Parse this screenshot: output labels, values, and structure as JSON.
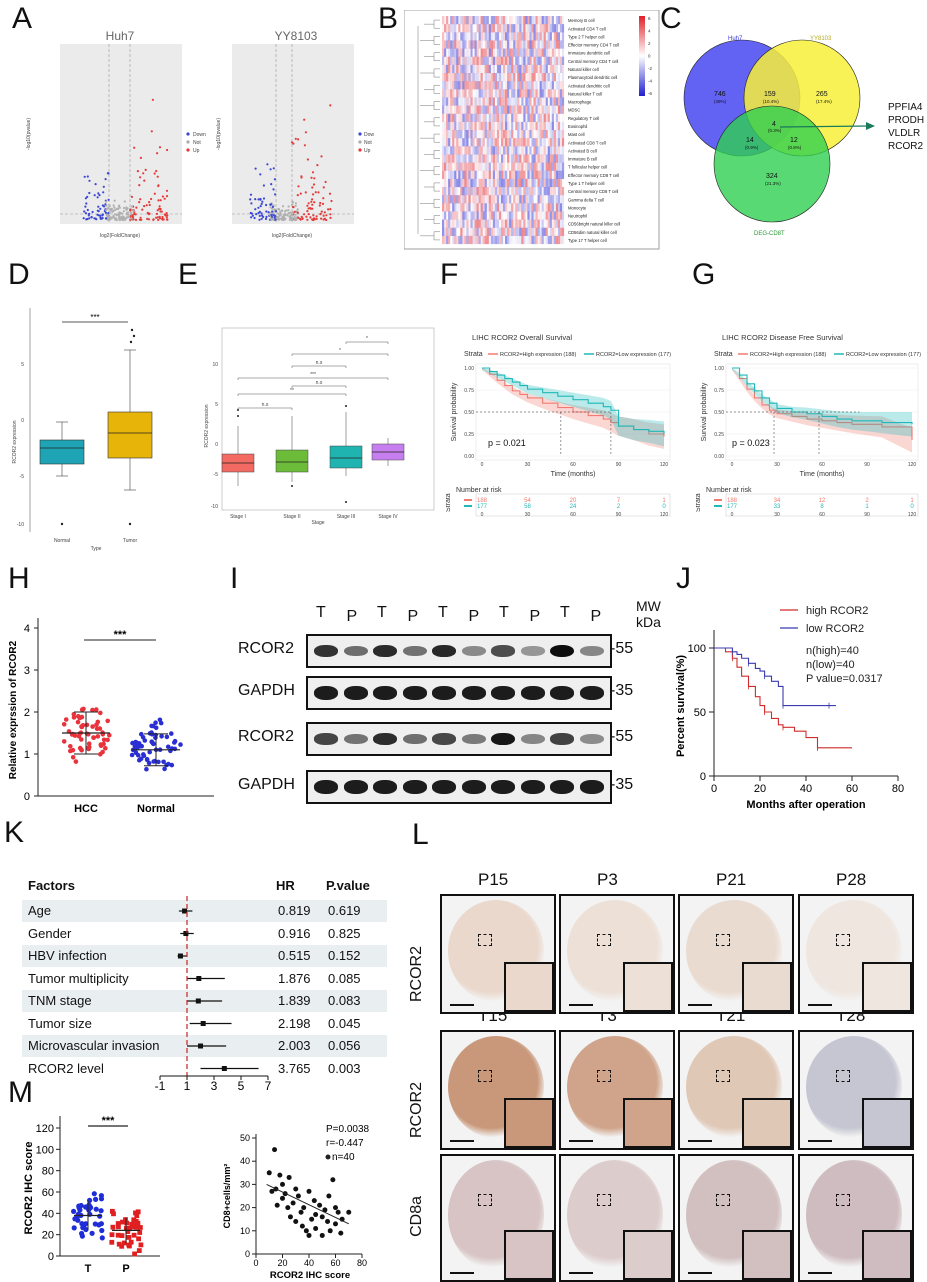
{
  "panels": {
    "A": "A",
    "B": "B",
    "C": "C",
    "D": "D",
    "E": "E",
    "F": "F",
    "G": "G",
    "H": "H",
    "I": "I",
    "J": "J",
    "K": "K",
    "L": "L",
    "M": "M"
  },
  "panelA": {
    "left_title": "Huh7",
    "right_title": "YY8103",
    "xlabel": "log2(FoldChange)",
    "ylabel": "-log10(pvalue)",
    "legend": [
      "Down",
      "Not",
      "Up"
    ]
  },
  "panelB": {
    "cells": [
      "Memory B cell",
      "Activated CD4 T cell",
      "Type 2 T helper cell",
      "Effector memory CD4 T cell",
      "Immature dendritic cell",
      "Central memory CD4 T cell",
      "Natural killer cell",
      "Plasmacytoid dendritic cell",
      "Activated dendritic cell",
      "Natural killer T cell",
      "Macrophage",
      "MDSC",
      "Regulatory T cell",
      "Eosinophil",
      "Mast cell",
      "Activated CD8 T cell",
      "Activated B cell",
      "Immature B cell",
      "T follicular helper cell",
      "Effector memory CD8 T cell",
      "Type 1 T helper cell",
      "Central memory CD8 T cell",
      "Gamma delta T cell",
      "Monocyte",
      "Neutrophil",
      "CD56bright natural killer cell",
      "CD56dim natural killer cell",
      "Type 17 T helper cell"
    ],
    "scale": [
      "6",
      "4",
      "2",
      "0",
      "-2",
      "-4",
      "-6"
    ]
  },
  "panelC": {
    "set1": "Huh7",
    "set2": "YY8103",
    "set3": "DEG-CD8T",
    "regions": [
      {
        "n": "746",
        "p": "(49%)"
      },
      {
        "n": "159",
        "p": "(10.4%)"
      },
      {
        "n": "265",
        "p": "(17.4%)"
      },
      {
        "n": "4",
        "p": "(0.3%)"
      },
      {
        "n": "14",
        "p": "(0.9%)"
      },
      {
        "n": "12",
        "p": "(0.8%)"
      },
      {
        "n": "324",
        "p": "(21.3%)"
      }
    ],
    "genes": [
      "PPFIA4",
      "PRODH",
      "VLDLR",
      "RCOR2"
    ]
  },
  "panelD": {
    "ylabel": "RCOR2 expression",
    "xlabel": "Type",
    "categories": [
      "Normal",
      "Tumor"
    ],
    "sig": "***",
    "yticks": [
      "5",
      "0",
      "-5",
      "-10"
    ]
  },
  "panelE": {
    "ylabel": "RCOR2 expression",
    "xlabel": "Stage",
    "categories": [
      "Stage I",
      "Stage II",
      "Stage III",
      "Stage IV"
    ],
    "sig": [
      "*",
      "*",
      "n.s",
      "***",
      "n.s",
      "**"
    ],
    "yticks": [
      "10",
      "5",
      "0",
      "-5",
      "-10"
    ]
  },
  "panelF": {
    "title": "LIHC RCOR2 Overall Survival",
    "strata_label": "Strata",
    "legend_high": "RCOR2=High expression (188)",
    "legend_low": "RCOR2=Low expression (177)",
    "ylabel": "Survival probability",
    "xlabel": "Time (months)",
    "pvalue": "p = 0.021",
    "risk_title": "Number at risk",
    "risk_high": [
      "188",
      "54",
      "20",
      "7",
      "1"
    ],
    "risk_low": [
      "177",
      "58",
      "24",
      "2",
      "0"
    ],
    "xticks": [
      "0",
      "30",
      "60",
      "90",
      "120"
    ],
    "yticks": [
      "1.00",
      "0.75",
      "0.50",
      "0.25",
      "0.00"
    ]
  },
  "panelG": {
    "title": "LIHC RCOR2 Disease Free Survival",
    "strata_label": "Strata",
    "legend_high": "RCOR2=High expression (188)",
    "legend_low": "RCOR2=Low expression (177)",
    "ylabel": "Survival probability",
    "xlabel": "Time (months)",
    "pvalue": "p = 0.023",
    "risk_title": "Number at risk",
    "risk_high": [
      "188",
      "34",
      "12",
      "2",
      "1"
    ],
    "risk_low": [
      "177",
      "33",
      "8",
      "1",
      "0"
    ],
    "xticks": [
      "0",
      "30",
      "60",
      "90",
      "120"
    ],
    "yticks": [
      "1.00",
      "0.75",
      "0.50",
      "0.25",
      "0.00"
    ]
  },
  "panelH": {
    "ylabel": "Relative exprssion of RCOR2",
    "categories": [
      "HCC",
      "Normal"
    ],
    "sig": "***",
    "yticks": [
      "0",
      "1",
      "2",
      "3",
      "4"
    ],
    "colors": {
      "HCC": "#e8323c",
      "Normal": "#2a2fd4"
    }
  },
  "panelI": {
    "lanes": [
      "T",
      "P",
      "T",
      "P",
      "T",
      "P",
      "T",
      "P",
      "T",
      "P"
    ],
    "mw_label": "MW",
    "kda_label": "kDa",
    "rows": [
      {
        "label": "RCOR2",
        "mw": "55"
      },
      {
        "label": "GAPDH",
        "mw": "35"
      },
      {
        "label": "RCOR2",
        "mw": "55"
      },
      {
        "label": "GAPDH",
        "mw": "35"
      }
    ]
  },
  "panelJ": {
    "legend_high": "high RCOR2",
    "legend_low": "low RCOR2",
    "n_high": "n(high)=40",
    "n_low": "n(low)=40",
    "pvalue": "P value=0.0317",
    "ylabel": "Percent survival(%)",
    "xlabel": "Months after operation",
    "xticks": [
      "0",
      "20",
      "40",
      "60",
      "80"
    ],
    "yticks": [
      "0",
      "50",
      "100"
    ],
    "colors": {
      "high": "#d22b2b",
      "low": "#3b3bb0"
    }
  },
  "panelK": {
    "headers": {
      "factor": "Factors",
      "hr": "HR",
      "p": "P.value"
    },
    "rows": [
      {
        "factor": "Age",
        "hr": "0.819",
        "p": "0.619"
      },
      {
        "factor": "Gender",
        "hr": "0.916",
        "p": "0.825"
      },
      {
        "factor": "HBV infection",
        "hr": "0.515",
        "p": "0.152"
      },
      {
        "factor": "Tumor multiplicity",
        "hr": "1.876",
        "p": "0.085"
      },
      {
        "factor": "TNM stage",
        "hr": "1.839",
        "p": "0.083"
      },
      {
        "factor": "Tumor size",
        "hr": "2.198",
        "p": "0.045"
      },
      {
        "factor": "Microvascular invasion",
        "hr": "2.003",
        "p": "0.056"
      },
      {
        "factor": "RCOR2 level",
        "hr": "3.765",
        "p": "0.003"
      }
    ],
    "xticks": [
      "-1",
      "1",
      "3",
      "5",
      "7"
    ]
  },
  "panelL": {
    "top_labels": [
      "P15",
      "P3",
      "P21",
      "P28"
    ],
    "mid_labels": [
      "T15",
      "T3",
      "T21",
      "T28"
    ],
    "row_labels": [
      "RCOR2",
      "RCOR2",
      "CD8a"
    ]
  },
  "panelM": {
    "left_ylabel": "RCOR2 IHC score",
    "left_categories": [
      "T",
      "P"
    ],
    "left_sig": "***",
    "left_yticks": [
      "0",
      "20",
      "40",
      "60",
      "80",
      "100",
      "120"
    ],
    "right_ylabel": "CD8+cells/mm²",
    "right_xlabel": "RCOR2 IHC score",
    "right_stats": [
      "P=0.0038",
      "r=-0.447",
      "n=40"
    ],
    "right_xticks": [
      "0",
      "20",
      "40",
      "60",
      "80"
    ],
    "right_yticks": [
      "0",
      "10",
      "20",
      "30",
      "40",
      "50"
    ]
  },
  "chart_data": [
    {
      "type": "line",
      "title": "LIHC RCOR2 Overall Survival",
      "xlabel": "Time (months)",
      "ylabel": "Survival probability",
      "xlim": [
        0,
        120
      ],
      "ylim": [
        0,
        1
      ],
      "series": [
        {
          "name": "RCOR2=High expression (188)",
          "x": [
            0,
            5,
            10,
            15,
            20,
            25,
            30,
            40,
            50,
            60,
            70,
            80,
            85,
            90,
            100,
            110,
            120
          ],
          "y": [
            1.0,
            0.93,
            0.86,
            0.8,
            0.74,
            0.7,
            0.66,
            0.6,
            0.55,
            0.5,
            0.46,
            0.42,
            0.38,
            0.34,
            0.3,
            0.25,
            0.22
          ]
        },
        {
          "name": "RCOR2=Low expression (177)",
          "x": [
            0,
            5,
            10,
            15,
            20,
            25,
            30,
            40,
            50,
            60,
            70,
            80,
            85,
            90,
            100,
            110,
            120
          ],
          "y": [
            1.0,
            0.96,
            0.92,
            0.88,
            0.84,
            0.8,
            0.76,
            0.72,
            0.68,
            0.64,
            0.6,
            0.56,
            0.52,
            0.34,
            0.3,
            0.28,
            0.25
          ]
        }
      ]
    },
    {
      "type": "line",
      "title": "LIHC RCOR2 Disease Free Survival",
      "xlabel": "Time (months)",
      "ylabel": "Survival probability",
      "xlim": [
        0,
        120
      ],
      "ylim": [
        0,
        1
      ],
      "series": [
        {
          "name": "RCOR2=High expression (188)",
          "x": [
            0,
            5,
            10,
            15,
            20,
            25,
            30,
            40,
            50,
            60,
            70,
            80,
            100,
            120
          ],
          "y": [
            1.0,
            0.88,
            0.76,
            0.66,
            0.58,
            0.52,
            0.48,
            0.45,
            0.42,
            0.4,
            0.38,
            0.36,
            0.33,
            0.18
          ]
        },
        {
          "name": "RCOR2=Low expression (177)",
          "x": [
            0,
            5,
            10,
            15,
            20,
            25,
            30,
            40,
            50,
            60,
            70,
            80,
            100,
            120
          ],
          "y": [
            1.0,
            0.92,
            0.82,
            0.74,
            0.66,
            0.6,
            0.54,
            0.5,
            0.48,
            0.45,
            0.42,
            0.4,
            0.38,
            0.36
          ]
        }
      ]
    },
    {
      "type": "line",
      "xlabel": "Months after operation",
      "ylabel": "Percent survival(%)",
      "xlim": [
        0,
        80
      ],
      "ylim": [
        0,
        100
      ],
      "series": [
        {
          "name": "high RCOR2",
          "x": [
            0,
            5,
            8,
            10,
            12,
            15,
            18,
            20,
            22,
            25,
            28,
            30,
            35,
            40,
            45,
            50,
            60
          ],
          "y": [
            100,
            97,
            92,
            85,
            78,
            70,
            62,
            55,
            50,
            45,
            40,
            38,
            35,
            30,
            22,
            22,
            22
          ]
        },
        {
          "name": "low RCOR2",
          "x": [
            0,
            5,
            8,
            10,
            12,
            15,
            18,
            20,
            22,
            25,
            28,
            30,
            35,
            40,
            50,
            53
          ],
          "y": [
            100,
            100,
            97,
            95,
            92,
            88,
            84,
            82,
            78,
            74,
            70,
            55,
            55,
            55,
            55,
            55
          ]
        }
      ]
    },
    {
      "type": "scatter",
      "xlabel": "RCOR2 IHC score",
      "ylabel": "CD8+cells/mm²",
      "xlim": [
        0,
        80
      ],
      "ylim": [
        0,
        50
      ],
      "series": [
        {
          "x": [
            10,
            12,
            14,
            15,
            16,
            18,
            20,
            20,
            22,
            24,
            25,
            26,
            28,
            30,
            30,
            32,
            34,
            35,
            36,
            38,
            40,
            40,
            42,
            44,
            45,
            45,
            48,
            50,
            50,
            52,
            54,
            55,
            56,
            58,
            60,
            60,
            62,
            64,
            65,
            70
          ],
          "y": [
            35,
            27,
            45,
            28,
            21,
            34,
            30,
            24,
            26,
            20,
            33,
            16,
            22,
            28,
            14,
            25,
            18,
            12,
            20,
            10,
            27,
            8,
            15,
            23,
            17,
            11,
            21,
            8,
            16,
            19,
            14,
            25,
            10,
            32,
            20,
            13,
            18,
            9,
            15,
            18
          ]
        }
      ]
    },
    {
      "type": "bar",
      "xlabel": "",
      "ylabel": "",
      "categories": [
        "Age",
        "Gender",
        "HBV infection",
        "Tumor multiplicity",
        "TNM stage",
        "Tumor size",
        "Microvascular invasion",
        "RCOR2 level"
      ],
      "values": [
        0.819,
        0.916,
        0.515,
        1.876,
        1.839,
        2.198,
        2.003,
        3.765
      ],
      "xlim": [
        -1,
        7
      ]
    }
  ]
}
